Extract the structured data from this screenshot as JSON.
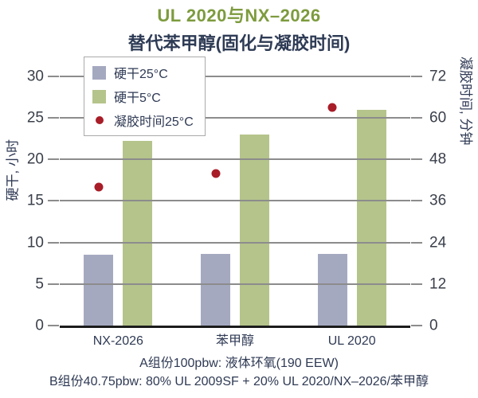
{
  "title": {
    "line1": "UL 2020与NX–2026",
    "line2": "替代苯甲醇(固化与凝胶时间)"
  },
  "legend": [
    {
      "label": "硬干25°C",
      "swatch": "square",
      "color": "#a5a9c0"
    },
    {
      "label": "硬干5°C",
      "swatch": "square",
      "color": "#b5c48b"
    },
    {
      "label": "凝胶时间25°C",
      "swatch": "dot",
      "color": "#a81d28"
    }
  ],
  "axes": {
    "left": {
      "label": "硬干, 小时",
      "ticks": [
        0,
        5,
        10,
        15,
        20,
        25,
        30
      ],
      "max": 32
    },
    "right": {
      "label": "凝胶时间, 分钟",
      "ticks": [
        0,
        12,
        24,
        36,
        48,
        60,
        72
      ],
      "max": 76.8
    }
  },
  "chart_data": {
    "type": "bar",
    "categories": [
      "NX-2026",
      "苯甲醇",
      "UL 2020"
    ],
    "series": [
      {
        "name": "硬干25°C",
        "type": "bar",
        "axis": "left",
        "color": "#a5a9c0",
        "values": [
          8.5,
          8.6,
          8.6
        ]
      },
      {
        "name": "硬干5°C",
        "type": "bar",
        "axis": "left",
        "color": "#b5c48b",
        "values": [
          22.2,
          23,
          26
        ]
      },
      {
        "name": "凝胶时间25°C",
        "type": "scatter",
        "axis": "right",
        "color": "#a81d28",
        "values": [
          40,
          44,
          63
        ]
      }
    ],
    "title": "UL 2020与NX–2026 替代苯甲醇(固化与凝胶时间)",
    "xlabel": "",
    "ylabel_left": "硬干, 小时",
    "ylabel_right": "凝胶时间, 分钟",
    "ylim_left": [
      0,
      32
    ],
    "ylim_right": [
      0,
      76.8
    ],
    "grid": true,
    "legend_position": "top-left"
  },
  "footnotes": [
    "A组份100pbw: 液体环氧(190 EEW)",
    "B组份40.75pbw: 80% UL 2009SF + 20% UL 2020/NX–2026/苯甲醇"
  ]
}
